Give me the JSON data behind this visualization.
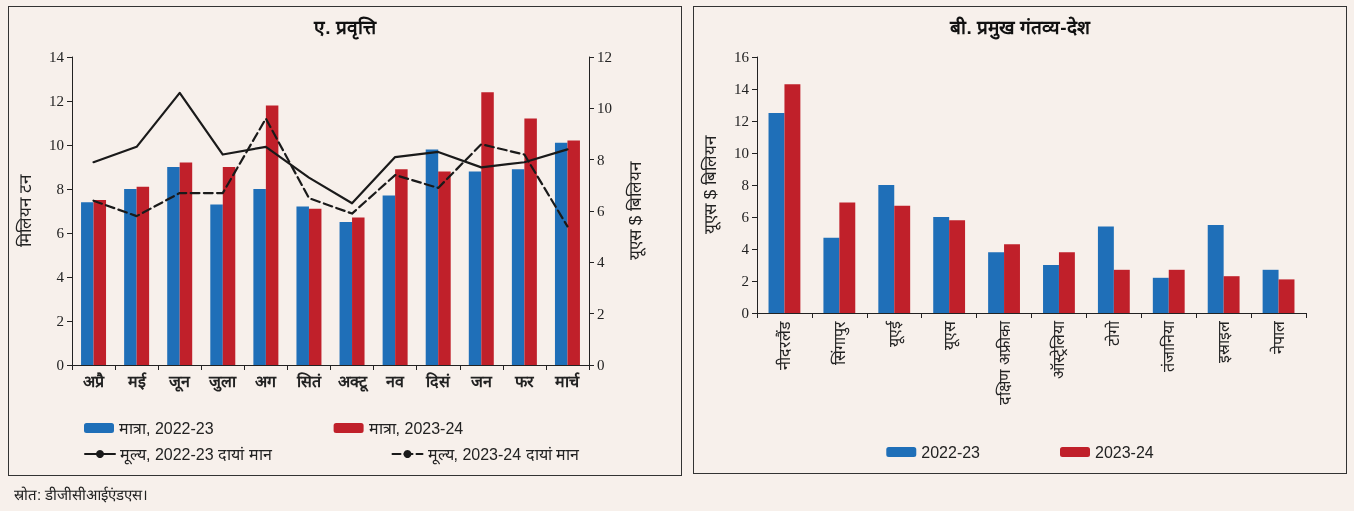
{
  "chart_data": [
    {
      "type": "bar",
      "title": "ए. प्रवृत्ति",
      "ylabel": "मिलियन टन",
      "y2label": "यूएस $ बिलियन",
      "categories": [
        "अप्रै",
        "मई",
        "जून",
        "जुला",
        "अग",
        "सितं",
        "अक्टू",
        "नव",
        "दिसं",
        "जन",
        "फर",
        "मार्च"
      ],
      "series": [
        {
          "name": "मात्रा, 2022-23",
          "color": "#1f6fb8",
          "values": [
            7.4,
            8.0,
            9.0,
            7.3,
            8.0,
            7.2,
            6.5,
            7.7,
            9.8,
            8.8,
            8.9,
            10.1
          ]
        },
        {
          "name": "मात्रा, 2023-24",
          "color": "#c0202a",
          "values": [
            7.5,
            8.1,
            9.2,
            9.0,
            11.8,
            7.1,
            6.7,
            8.9,
            8.8,
            12.4,
            11.2,
            10.2
          ]
        },
        {
          "name": "मूल्य, 2022-23 दायां मान",
          "type": "line",
          "axis": "y2",
          "color": "#1a1a1a",
          "line_style": "solid",
          "values": [
            7.9,
            8.5,
            10.6,
            8.2,
            8.5,
            7.3,
            6.3,
            8.1,
            8.3,
            7.7,
            7.9,
            8.4
          ]
        },
        {
          "name": "मूल्य, 2023-24 दायां मान",
          "type": "line",
          "axis": "y2",
          "color": "#1a1a1a",
          "line_style": "dashed",
          "values": [
            6.4,
            5.8,
            6.7,
            6.7,
            9.6,
            6.5,
            5.9,
            7.4,
            6.9,
            8.6,
            8.2,
            5.4
          ]
        }
      ],
      "ylim": [
        0,
        14
      ],
      "yticks": [
        0,
        2,
        4,
        6,
        8,
        10,
        12,
        14
      ],
      "y2lim": [
        0,
        12
      ],
      "y2ticks": [
        0,
        2,
        4,
        6,
        8,
        10,
        12
      ],
      "grid": false,
      "legend": "bottom",
      "marker": "none",
      "annotations": [
        "स्रोत: डीजीसीआईएंडएस।"
      ]
    },
    {
      "type": "bar",
      "title": "बी. प्रमुख गंतव्य-देश",
      "ylabel": "यूएस $ बिलियन",
      "categories": [
        "नीदरलैंड",
        "सिंगापुर",
        "यूएई",
        "यूएस",
        "दक्षिण अफ्रीका",
        "ऑस्ट्रेलिया",
        "टोगो",
        "तंजानिया",
        "इस्राइल",
        "नेपाल"
      ],
      "series": [
        {
          "name": "2022-23",
          "color": "#1f6fb8",
          "values": [
            12.5,
            4.7,
            8.0,
            6.0,
            3.8,
            3.0,
            5.4,
            2.2,
            5.5,
            2.7
          ]
        },
        {
          "name": "2023-24",
          "color": "#c0202a",
          "values": [
            14.3,
            6.9,
            6.7,
            5.8,
            4.3,
            3.8,
            2.7,
            2.7,
            2.3,
            2.1
          ]
        }
      ],
      "ylim": [
        0,
        16
      ],
      "yticks": [
        0,
        2,
        4,
        6,
        8,
        10,
        12,
        14,
        16
      ],
      "grid": false,
      "legend": "bottom"
    }
  ]
}
